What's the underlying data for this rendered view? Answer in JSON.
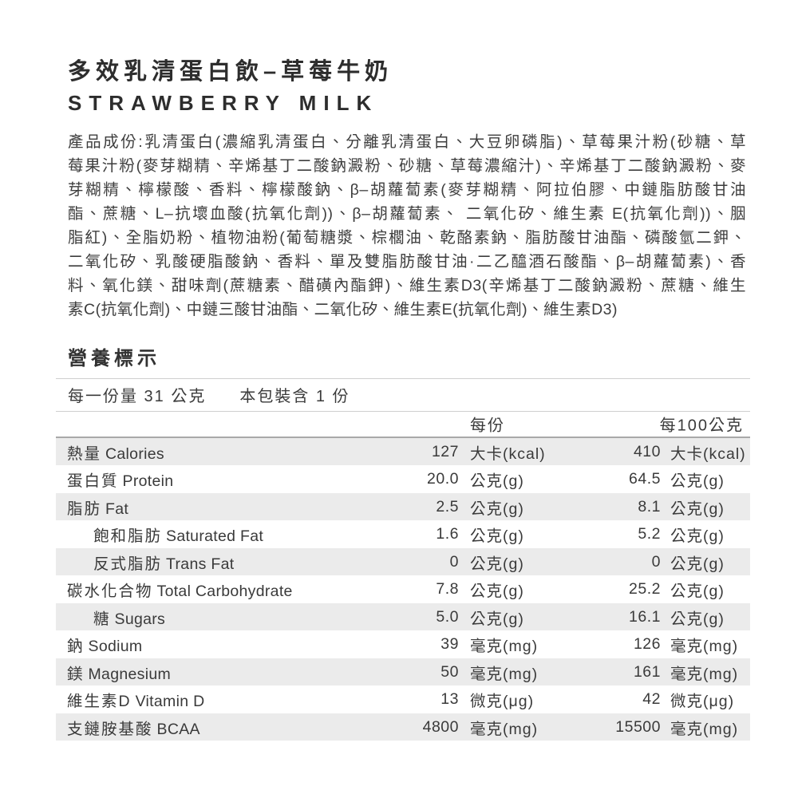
{
  "header": {
    "title_zh": "多效乳清蛋白飲–草莓牛奶",
    "title_en": "STRAWBERRY MILK"
  },
  "ingredients": {
    "lines": [
      "產品成份:乳清蛋白(濃縮乳清蛋白、分離乳清蛋白、大豆卵磷脂)、草莓果汁粉(砂糖、草",
      "莓果汁粉(麥芽糊精、辛烯基丁二酸鈉澱粉、砂糖、草莓濃縮汁)、辛烯基丁二酸鈉澱粉、麥",
      "芽糊精、檸檬酸、香料、檸檬酸鈉、β–胡蘿蔔素(麥芽糊精、阿拉伯膠、中鏈脂肪酸甘油",
      "酯、蔗糖、L–抗壞血酸(抗氧化劑))、β–胡蘿蔔素、 二氧化矽、維生素 E(抗氧化劑))、胭",
      "脂紅)、全脂奶粉、植物油粉(葡萄糖漿、棕櫚油、乾酪素鈉、脂肪酸甘油酯、磷酸氫二鉀、",
      "二氧化矽、乳酸硬脂酸鈉、香料、單及雙脂肪酸甘油·二乙醯酒石酸酯、β–胡蘿蔔素)、香",
      "料、氧化鎂、甜味劑(蔗糖素、醋磺內酯鉀)、維生素D3(辛烯基丁二酸鈉澱粉、蔗糖、維生",
      "素C(抗氧化劑)、中鏈三酸甘油酯、二氧化矽、維生素E(抗氧化劑)、維生素D3)"
    ]
  },
  "nutrition": {
    "heading": "營養標示",
    "serving_size": "每一份量 31 公克",
    "servings_per_pack": "本包裝含 1 份",
    "col_per_serving": "每份",
    "col_per_100g": "每100公克",
    "rows": [
      {
        "zh": "熱量",
        "en": "Calories",
        "indent": false,
        "shaded": true,
        "v1": "127",
        "u1": "大卡(kcal)",
        "v2": "410",
        "u2": "大卡(kcal)"
      },
      {
        "zh": "蛋白質",
        "en": "Protein",
        "indent": false,
        "shaded": false,
        "v1": "20.0",
        "u1": "公克(g)",
        "v2": "64.5",
        "u2": "公克(g)"
      },
      {
        "zh": "脂肪",
        "en": "Fat",
        "indent": false,
        "shaded": true,
        "v1": "2.5",
        "u1": "公克(g)",
        "v2": "8.1",
        "u2": "公克(g)"
      },
      {
        "zh": "飽和脂肪",
        "en": "Saturated Fat",
        "indent": true,
        "shaded": false,
        "v1": "1.6",
        "u1": "公克(g)",
        "v2": "5.2",
        "u2": "公克(g)"
      },
      {
        "zh": "反式脂肪",
        "en": "Trans Fat",
        "indent": true,
        "shaded": true,
        "v1": "0",
        "u1": "公克(g)",
        "v2": "0",
        "u2": "公克(g)"
      },
      {
        "zh": "碳水化合物",
        "en": "Total Carbohydrate",
        "indent": false,
        "shaded": false,
        "v1": "7.8",
        "u1": "公克(g)",
        "v2": "25.2",
        "u2": "公克(g)"
      },
      {
        "zh": "糖",
        "en": "Sugars",
        "indent": true,
        "shaded": true,
        "v1": "5.0",
        "u1": "公克(g)",
        "v2": "16.1",
        "u2": "公克(g)"
      },
      {
        "zh": "鈉",
        "en": "Sodium",
        "indent": false,
        "shaded": false,
        "v1": "39",
        "u1": "毫克(mg)",
        "v2": "126",
        "u2": "毫克(mg)"
      },
      {
        "zh": "鎂",
        "en": "Magnesium",
        "indent": false,
        "shaded": true,
        "v1": "50",
        "u1": "毫克(mg)",
        "v2": "161",
        "u2": "毫克(mg)"
      },
      {
        "zh": "維生素D",
        "en": "Vitamin D",
        "indent": false,
        "shaded": false,
        "v1": "13",
        "u1": "微克(μg)",
        "v2": "42",
        "u2": "微克(μg)"
      },
      {
        "zh": "支鏈胺基酸",
        "en": "BCAA",
        "indent": false,
        "shaded": true,
        "v1": "4800",
        "u1": "毫克(mg)",
        "v2": "15500",
        "u2": "毫克(mg)"
      }
    ]
  },
  "colors": {
    "text": "#3a3a3a",
    "title": "#2d2d2d",
    "row_shade": "#ebebeb",
    "rule_light": "#cfcfcf",
    "rule_dark": "#a9a9a9",
    "background": "#ffffff"
  }
}
